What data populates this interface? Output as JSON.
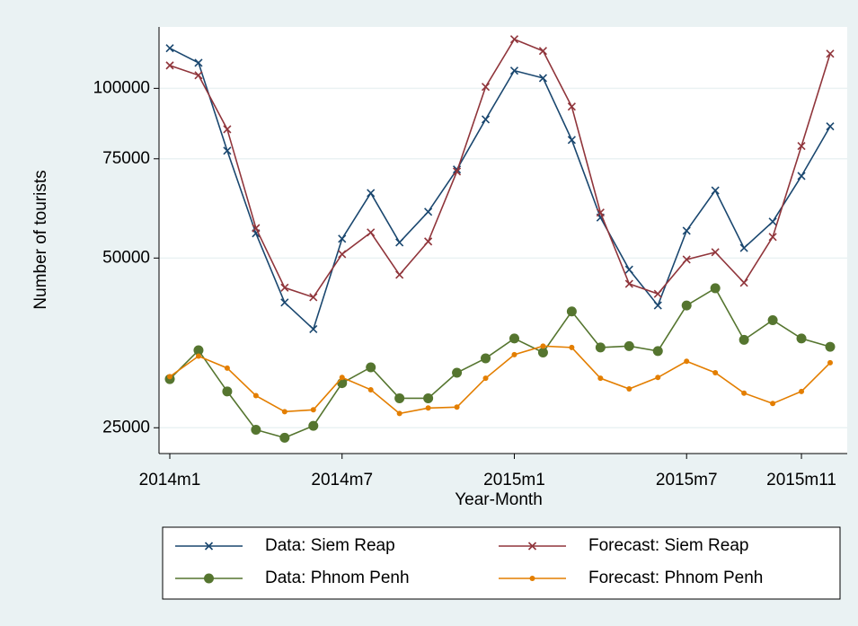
{
  "chart_data": {
    "type": "line",
    "x_label": "Year-Month",
    "y_label": "Number of tourists",
    "categories": [
      "2014m1",
      null,
      null,
      null,
      null,
      null,
      "2014m7",
      null,
      null,
      null,
      null,
      null,
      "2015m1",
      null,
      null,
      null,
      null,
      null,
      "2015m7",
      null,
      null,
      null,
      "2015m11",
      null
    ],
    "log_scale": true,
    "grid": true,
    "ylim": [
      22500,
      128500
    ],
    "yticks": [
      25000,
      50000,
      75000,
      100000
    ],
    "legend_position": "bottom",
    "series": [
      {
        "name": "Data: Siem Reap",
        "color": "#1a476f",
        "marker": "x",
        "values": [
          117800,
          111000,
          77500,
          55300,
          41700,
          37400,
          54100,
          65200,
          53300,
          60400,
          71800,
          88100,
          107500,
          104300,
          81000,
          59000,
          47700,
          41200,
          55900,
          65900,
          52100,
          58000,
          69900,
          85600
        ]
      },
      {
        "name": "Forecast: Siem Reap",
        "color": "#90353b",
        "marker": "x",
        "values": [
          109800,
          105500,
          84600,
          56500,
          44300,
          42600,
          50800,
          55500,
          46700,
          53500,
          71200,
          100600,
          122200,
          116500,
          92800,
          60200,
          45000,
          43200,
          49700,
          51200,
          45200,
          54500,
          79000,
          115200
        ]
      },
      {
        "name": "Data: Phnom Penh",
        "color": "#55752f",
        "marker": "circle",
        "values": [
          30500,
          34300,
          29000,
          24800,
          24000,
          25200,
          30000,
          32000,
          28200,
          28200,
          31300,
          33200,
          36000,
          34000,
          40200,
          34700,
          34900,
          34200,
          41200,
          44200,
          35800,
          38800,
          36000,
          34800
        ]
      },
      {
        "name": "Forecast: Phnom Penh",
        "color": "#e37e00",
        "marker": "dot",
        "values": [
          30800,
          33500,
          31900,
          28500,
          26700,
          26900,
          30700,
          29200,
          26500,
          27100,
          27200,
          30600,
          33700,
          34900,
          34700,
          30600,
          29300,
          30700,
          32800,
          31300,
          28800,
          27600,
          29000,
          32600
        ]
      }
    ]
  }
}
